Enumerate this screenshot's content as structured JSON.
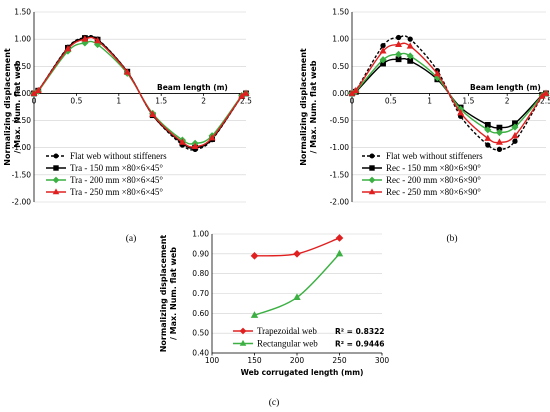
{
  "chart_data": [
    {
      "type": "line",
      "panel_label": "(a)",
      "xlabel": "Beam length (m)",
      "ylabel": [
        "Normalizing displacement",
        "/ Max. Num. flat web"
      ],
      "xlim": [
        0,
        2.5
      ],
      "ylim": [
        -2.0,
        1.5
      ],
      "xticks": [
        "0",
        "0.5",
        "1",
        "1.5",
        "2",
        "2.5"
      ],
      "yticks": [
        "1.50",
        "1.00",
        "0.50",
        "0.00",
        "-0.50",
        "-1.00",
        "-1.50",
        "-2.00"
      ],
      "legend_position": "bottom-left",
      "series": [
        {
          "name": "Flat web without stiffeners",
          "color": "#000000",
          "dash": "dashed",
          "marker": "circle",
          "x": [
            0,
            0.05,
            0.4,
            0.6,
            0.75,
            1.1,
            1.4,
            1.75,
            1.9,
            2.1,
            2.45,
            2.5
          ],
          "y": [
            0,
            0.05,
            0.85,
            1.03,
            1.0,
            0.4,
            -0.4,
            -0.95,
            -1.03,
            -0.85,
            -0.05,
            0
          ]
        },
        {
          "name": "Tra - 150 mm  ×80×6×45°",
          "color": "#000000",
          "dash": "solid",
          "marker": "square",
          "x": [
            0,
            0.05,
            0.4,
            0.6,
            0.75,
            1.1,
            1.4,
            1.75,
            1.9,
            2.1,
            2.45,
            2.5
          ],
          "y": [
            0,
            0.05,
            0.84,
            1.02,
            0.99,
            0.4,
            -0.4,
            -0.92,
            -1.0,
            -0.84,
            -0.05,
            0
          ]
        },
        {
          "name": "Tra - 200 mm  ×80×6×45°",
          "color": "#3cb043",
          "dash": "solid",
          "marker": "diamond",
          "x": [
            0,
            0.05,
            0.4,
            0.6,
            0.75,
            1.1,
            1.4,
            1.75,
            1.9,
            2.1,
            2.45,
            2.5
          ],
          "y": [
            0,
            0.04,
            0.78,
            0.93,
            0.9,
            0.37,
            -0.37,
            -0.86,
            -0.92,
            -0.78,
            -0.04,
            0
          ]
        },
        {
          "name": "Tra - 250 mm  ×80×6×45°",
          "color": "#e02020",
          "dash": "solid",
          "marker": "triangle",
          "x": [
            0,
            0.05,
            0.4,
            0.6,
            0.75,
            1.1,
            1.4,
            1.75,
            1.9,
            2.1,
            2.45,
            2.5
          ],
          "y": [
            0,
            0.05,
            0.82,
            1.0,
            0.97,
            0.39,
            -0.39,
            -0.9,
            -0.98,
            -0.82,
            -0.05,
            0
          ]
        }
      ]
    },
    {
      "type": "line",
      "panel_label": "(b)",
      "xlabel": "Beam length (m)",
      "ylabel": [
        "Normalizing displacement",
        "/ Max. Num. flat web"
      ],
      "xlim": [
        0,
        2.5
      ],
      "ylim": [
        -2.0,
        1.5
      ],
      "xticks": [
        "0",
        "0.5",
        "1",
        "1.5",
        "2",
        "2.5"
      ],
      "yticks": [
        "1.50",
        "1.00",
        "0.50",
        "0.00",
        "-0.50",
        "-1.00",
        "-1.50",
        "-2.00"
      ],
      "legend_position": "bottom-left",
      "series": [
        {
          "name": "Flat web without stiffeners",
          "color": "#000000",
          "dash": "dashed",
          "marker": "circle",
          "x": [
            0,
            0.05,
            0.4,
            0.6,
            0.75,
            1.1,
            1.4,
            1.75,
            1.9,
            2.1,
            2.45,
            2.5
          ],
          "y": [
            0,
            0.05,
            0.88,
            1.03,
            1.0,
            0.42,
            -0.42,
            -0.95,
            -1.03,
            -0.88,
            -0.05,
            0
          ]
        },
        {
          "name": "Rec - 150 mm  ×80×6×90°",
          "color": "#000000",
          "dash": "solid",
          "marker": "square",
          "x": [
            0,
            0.05,
            0.4,
            0.6,
            0.75,
            1.1,
            1.4,
            1.75,
            1.9,
            2.1,
            2.45,
            2.5
          ],
          "y": [
            0,
            0.03,
            0.55,
            0.63,
            0.6,
            0.26,
            -0.26,
            -0.58,
            -0.63,
            -0.55,
            -0.03,
            0
          ]
        },
        {
          "name": "Rec - 200 mm  ×80×6×90°",
          "color": "#3cb043",
          "dash": "solid",
          "marker": "diamond",
          "x": [
            0,
            0.05,
            0.4,
            0.6,
            0.75,
            1.1,
            1.4,
            1.75,
            1.9,
            2.1,
            2.45,
            2.5
          ],
          "y": [
            0,
            0.04,
            0.62,
            0.72,
            0.69,
            0.29,
            -0.29,
            -0.67,
            -0.72,
            -0.62,
            -0.04,
            0
          ]
        },
        {
          "name": "Rec - 250 mm  ×80×6×90°",
          "color": "#e02020",
          "dash": "solid",
          "marker": "triangle",
          "x": [
            0,
            0.05,
            0.4,
            0.6,
            0.75,
            1.1,
            1.4,
            1.75,
            1.9,
            2.1,
            2.45,
            2.5
          ],
          "y": [
            0,
            0.05,
            0.78,
            0.9,
            0.87,
            0.36,
            -0.36,
            -0.83,
            -0.9,
            -0.78,
            -0.05,
            0
          ]
        }
      ]
    },
    {
      "type": "line",
      "panel_label": "(c)",
      "xlabel": "Web corrugated length (mm)",
      "ylabel": [
        "Normalizing displacement",
        "/ Max. Num. flat web"
      ],
      "xlim": [
        100,
        300
      ],
      "ylim": [
        0.4,
        1.0
      ],
      "xticks": [
        "100",
        "150",
        "200",
        "250",
        "300"
      ],
      "yticks": [
        "1.00",
        "0.90",
        "0.80",
        "0.70",
        "0.60",
        "0.50",
        "0.40"
      ],
      "legend_position": "bottom-left",
      "series": [
        {
          "name": "Trapezoidal web",
          "r2": "R² = 0.8322",
          "color": "#e02020",
          "marker": "diamond",
          "x": [
            150,
            200,
            250
          ],
          "y": [
            0.89,
            0.9,
            0.98
          ]
        },
        {
          "name": "Rectangular web",
          "r2": "R² = 0.9446",
          "color": "#3cb043",
          "marker": "triangle",
          "x": [
            150,
            200,
            250
          ],
          "y": [
            0.59,
            0.68,
            0.9
          ]
        }
      ]
    }
  ]
}
